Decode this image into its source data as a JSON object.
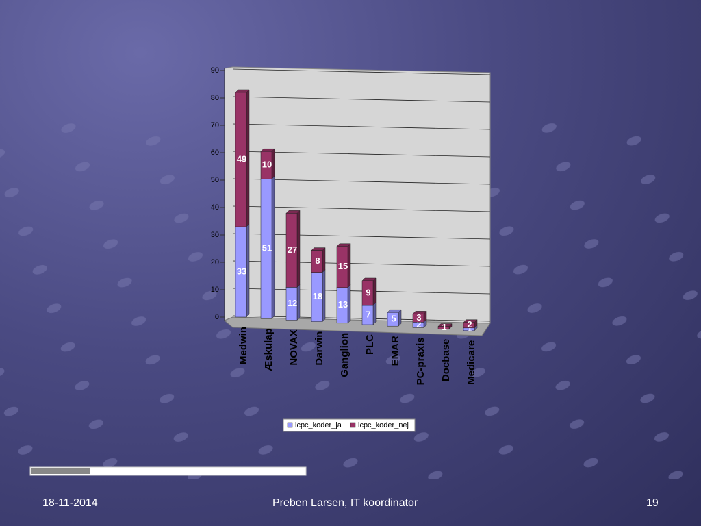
{
  "chart_data": {
    "type": "bar",
    "stacked": true,
    "categories": [
      "Medwin",
      "Æskulap",
      "NOVAX",
      "Darwin",
      "Ganglion",
      "PLC",
      "EMAR",
      "PC-praxis",
      "Docbase",
      "Medicare"
    ],
    "series": [
      {
        "name": "icpc_koder_ja",
        "color": "#9999ff",
        "values": [
          33,
          51,
          12,
          18,
          13,
          7,
          5,
          2,
          null,
          1
        ]
      },
      {
        "name": "icpc_koder_nej",
        "color": "#993366",
        "values": [
          49,
          10,
          27,
          8,
          15,
          9,
          null,
          3,
          1,
          2
        ]
      }
    ],
    "ylim": [
      0,
      90
    ],
    "yticks": [
      0,
      10,
      20,
      30,
      40,
      50,
      60,
      70,
      80,
      90
    ],
    "grid": true,
    "legend": "bottom"
  },
  "footer": {
    "date": "18-11-2014",
    "author": "Preben Larsen, IT koordinator",
    "page": "19"
  }
}
